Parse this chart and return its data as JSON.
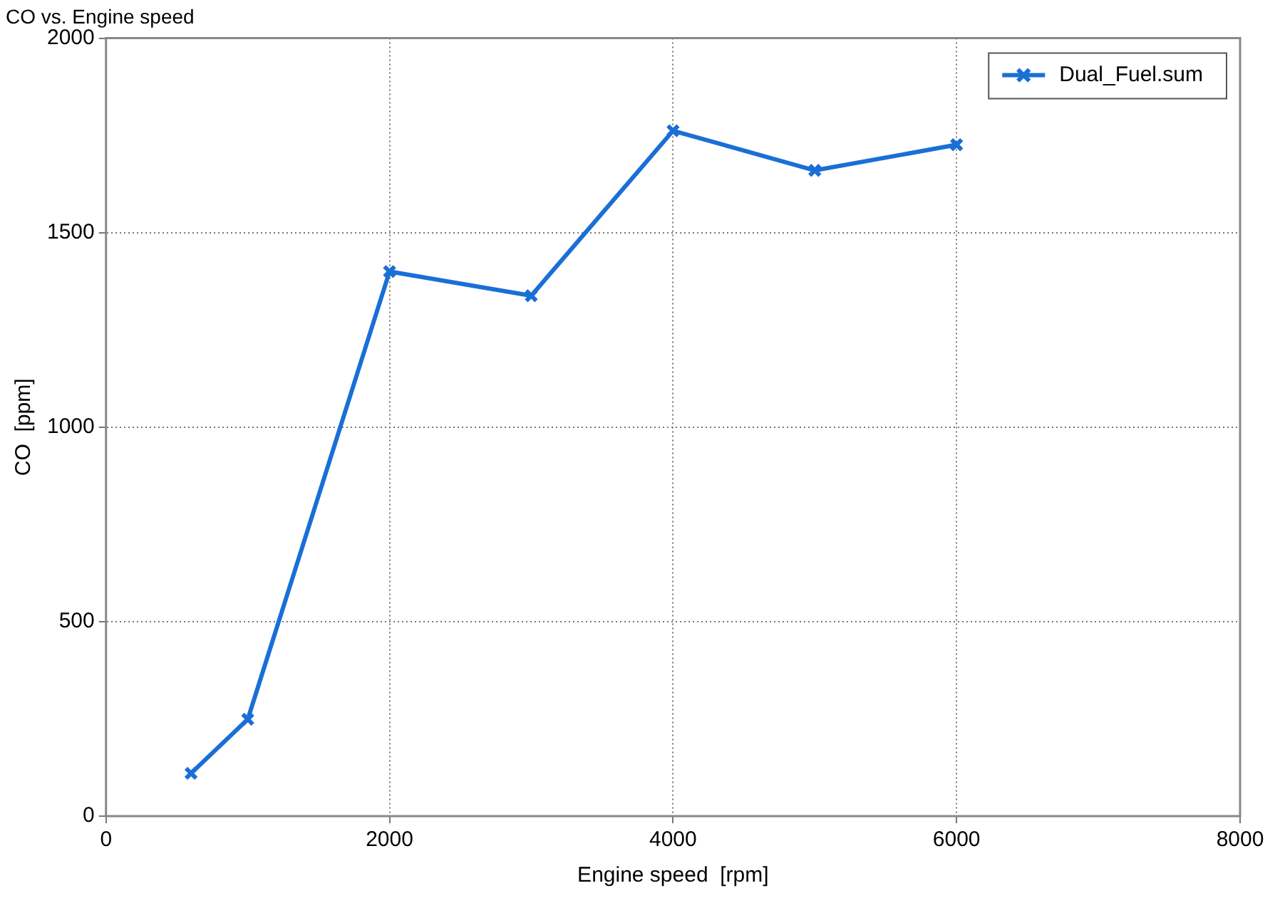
{
  "chart_data": {
    "type": "line",
    "title": "CO vs. Engine speed",
    "xlabel": "Engine speed  [rpm]",
    "ylabel": "CO  [ppm]",
    "x": [
      600,
      1000,
      2000,
      3000,
      4000,
      5000,
      6000
    ],
    "series": [
      {
        "name": "Dual_Fuel.sum",
        "color": "#1a6fd6",
        "values": [
          110,
          249,
          1400,
          1338,
          1762,
          1660,
          1726
        ]
      }
    ],
    "xlim": [
      0,
      8000
    ],
    "xticks": [
      0,
      2000,
      4000,
      6000,
      8000
    ],
    "ylim": [
      0,
      2000
    ],
    "yticks": [
      0,
      500,
      1000,
      1500,
      2000
    ],
    "grid": true,
    "legend": "top right",
    "marker": "cross",
    "line_style": "solid"
  }
}
